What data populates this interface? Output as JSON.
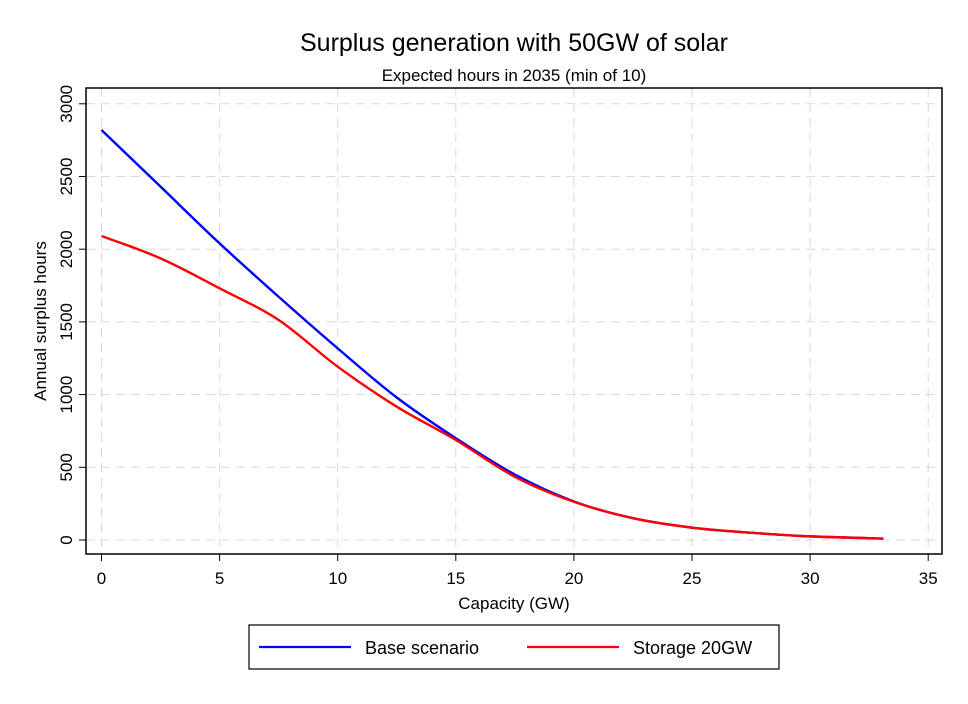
{
  "chart_data": {
    "type": "line",
    "title": "Surplus generation with 50GW of solar",
    "subtitle": "Expected hours in 2035 (min of 10)",
    "xlabel": "Capacity (GW)",
    "ylabel": "Annual surplus hours",
    "xlim": [
      0,
      35
    ],
    "ylim": [
      0,
      3000
    ],
    "xticks": [
      0,
      5,
      10,
      15,
      20,
      25,
      30,
      35
    ],
    "yticks": [
      0,
      500,
      1000,
      1500,
      2000,
      2500,
      3000
    ],
    "grid": true,
    "legend_position": "bottom",
    "series": [
      {
        "name": "Base scenario",
        "color": "#0000ff",
        "x": [
          0,
          2.5,
          5,
          7.5,
          10,
          12.5,
          15,
          17.5,
          20,
          22.5,
          25,
          27.5,
          30,
          33.1
        ],
        "y": [
          2820,
          2430,
          2040,
          1673,
          1318,
          980,
          700,
          450,
          265,
          150,
          85,
          50,
          25,
          10
        ]
      },
      {
        "name": "Storage 20GW",
        "color": "#ff0000",
        "x": [
          0,
          2.5,
          5,
          7.5,
          10,
          12.5,
          15,
          17.5,
          20,
          22.5,
          25,
          27.5,
          30,
          33.1
        ],
        "y": [
          2091,
          1937,
          1731,
          1513,
          1192,
          917,
          688,
          435,
          263,
          150,
          85,
          50,
          25,
          10
        ]
      }
    ]
  }
}
